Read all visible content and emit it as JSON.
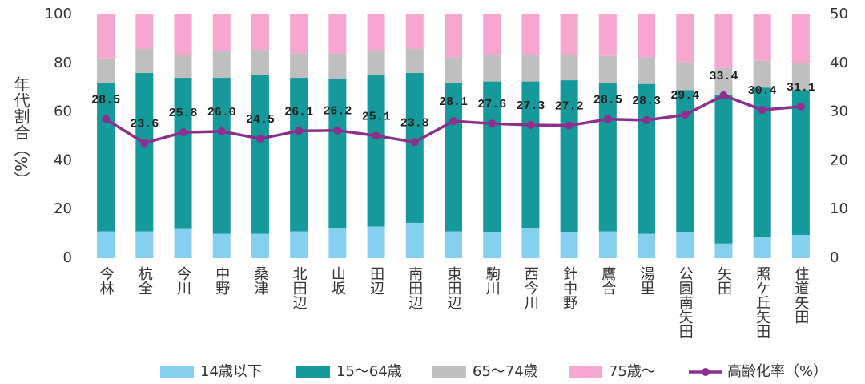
{
  "chart_data": {
    "type": "bar",
    "stacked": true,
    "y_label": "年代割合（%）",
    "categories": [
      "今林",
      "杭全",
      "今川",
      "中野",
      "桑津",
      "北田辺",
      "山坂",
      "田辺",
      "南田辺",
      "東田辺",
      "駒川",
      "西今川",
      "針中野",
      "鷹合",
      "湯里",
      "公園南矢田",
      "矢田",
      "照ケ丘矢田",
      "住道矢田"
    ],
    "series": [
      {
        "name": "14歳以下",
        "color": "#86d0ef",
        "values": [
          11,
          11,
          12,
          10,
          10,
          11,
          12.5,
          13,
          14.5,
          11,
          10.5,
          12.5,
          10.5,
          11,
          10,
          10.5,
          6,
          8.5,
          9.5
        ]
      },
      {
        "name": "15～64歳",
        "color": "#15999b",
        "values": [
          61,
          65,
          62,
          64,
          65,
          63,
          61,
          62,
          61.5,
          61,
          62,
          60,
          62.5,
          61,
          61.5,
          58.5,
          61,
          61.5,
          59.5
        ]
      },
      {
        "name": "65～74歳",
        "color": "#bfbfbf",
        "values": [
          10,
          10,
          9.5,
          11,
          10.5,
          10,
          10.5,
          10,
          10,
          10.5,
          11,
          11,
          10.5,
          11,
          11,
          11.5,
          11,
          11,
          11
        ]
      },
      {
        "name": "75歳～",
        "color": "#f7a6d0",
        "values": [
          18,
          14,
          16.5,
          15,
          14.5,
          16,
          16,
          15,
          14,
          17.5,
          16.5,
          16.5,
          16.5,
          17,
          17.5,
          19.5,
          22,
          19,
          20
        ]
      },
      {
        "name": "高齢化率（%）",
        "color": "#8c2f8e",
        "type": "line",
        "axis": "y2",
        "values": [
          28.5,
          23.6,
          25.8,
          26.0,
          24.5,
          26.1,
          26.2,
          25.1,
          23.8,
          28.1,
          27.6,
          27.3,
          27.2,
          28.5,
          28.3,
          29.4,
          33.4,
          30.4,
          31.1
        ],
        "value_labels": [
          "28.5",
          "23.6",
          "25.8",
          "26.0",
          "24.5",
          "26.1",
          "26.2",
          "25.1",
          "23.8",
          "28.1",
          "27.6",
          "27.3",
          "27.2",
          "28.5",
          "28.3",
          "29.4",
          "33.4",
          "30.4",
          "31.1"
        ]
      }
    ],
    "ylim": [
      0,
      100
    ],
    "yticks": [
      0,
      20,
      40,
      60,
      80,
      100
    ],
    "y2lim": [
      0,
      50
    ],
    "y2ticks": [
      0,
      10,
      20,
      30,
      40,
      50
    ],
    "legend": "bottom"
  }
}
